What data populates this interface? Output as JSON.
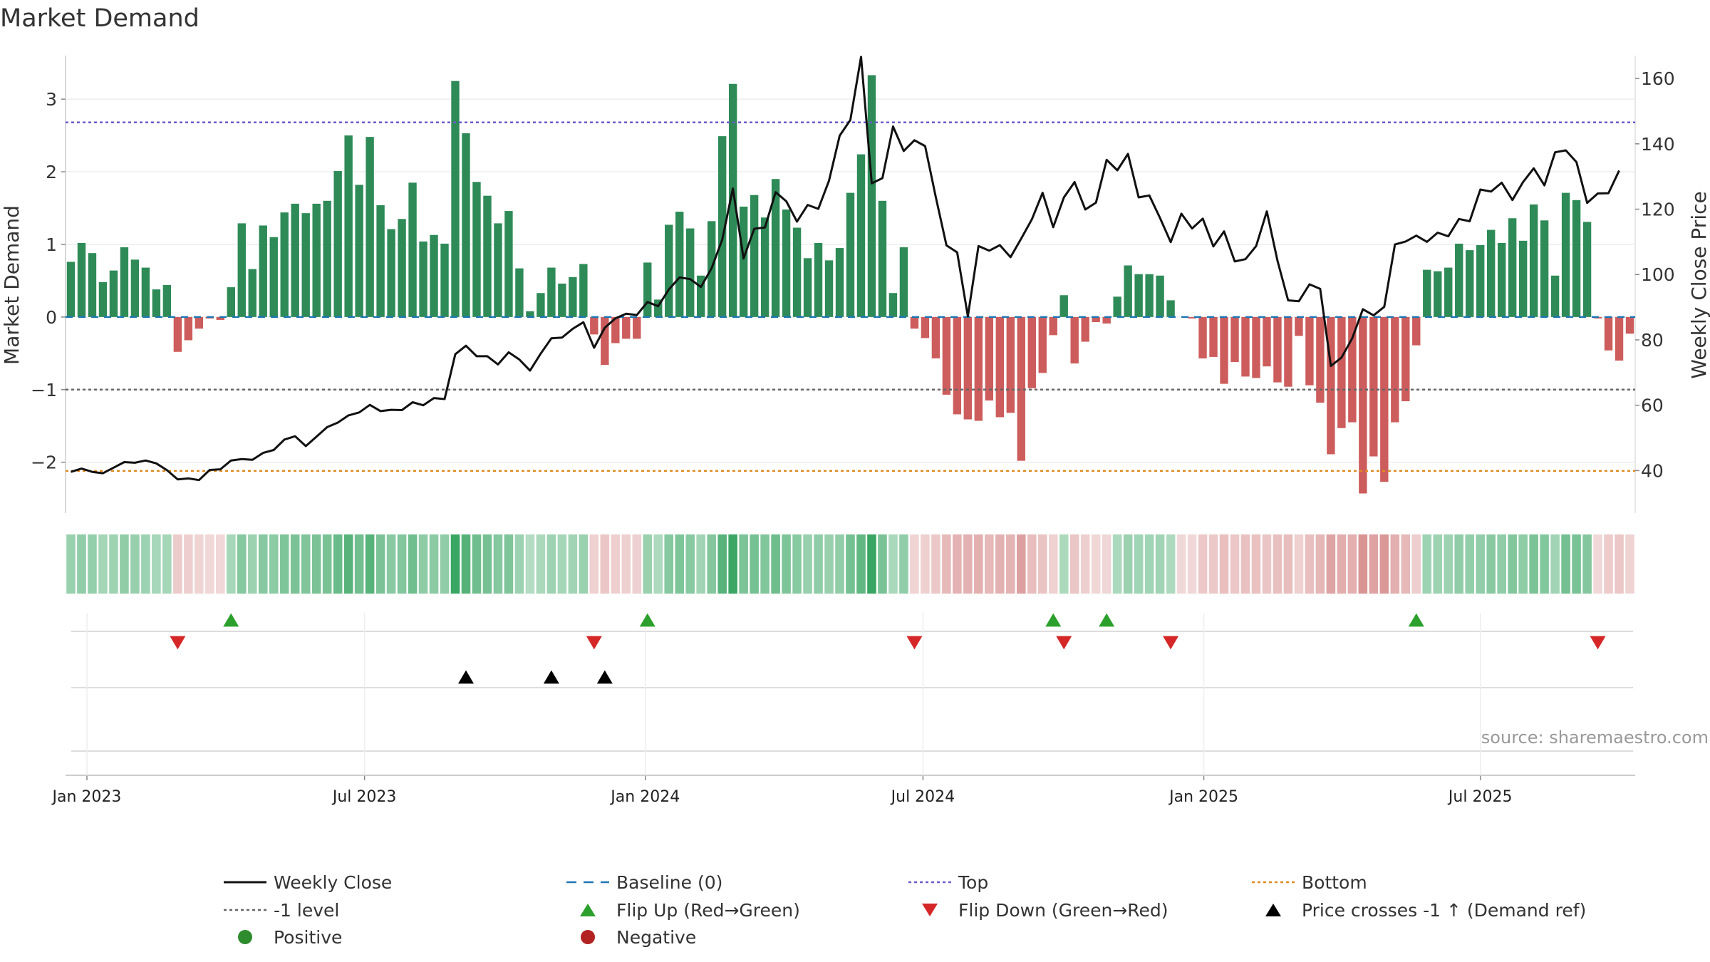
{
  "chart_data": {
    "type": "bar",
    "title": "Market Demand",
    "ylabel_left": "Market Demand",
    "ylabel_right": "Weekly Close Price",
    "source": "source: sharemaestro.com",
    "ylim_left": [
      -2.7,
      3.6
    ],
    "ylim_right": [
      27,
      167
    ],
    "left_ticks": [
      {
        "value": 3,
        "label": "3"
      },
      {
        "value": 2,
        "label": "2"
      },
      {
        "value": 1,
        "label": "1"
      },
      {
        "value": 0,
        "label": "0"
      },
      {
        "value": -1,
        "label": "−1"
      },
      {
        "value": -2,
        "label": "−2"
      }
    ],
    "right_ticks": [
      {
        "value": 160,
        "label": "160"
      },
      {
        "value": 140,
        "label": "140"
      },
      {
        "value": 120,
        "label": "120"
      },
      {
        "value": 100,
        "label": "100"
      },
      {
        "value": 80,
        "label": "80"
      },
      {
        "value": 60,
        "label": "60"
      },
      {
        "value": 40,
        "label": "40"
      }
    ],
    "x_ticks": [
      {
        "week": 1.5,
        "label": "Jan 2023"
      },
      {
        "week": 27.5,
        "label": "Jul 2023"
      },
      {
        "week": 53.8,
        "label": "Jan 2024"
      },
      {
        "week": 79.8,
        "label": "Jul 2024"
      },
      {
        "week": 106.1,
        "label": "Jan 2025"
      },
      {
        "week": 132,
        "label": "Jul 2025"
      }
    ],
    "reference_lines": {
      "top": 2.68,
      "minus_one": -1,
      "bottom": -2.12,
      "baseline": 0
    },
    "colors": {
      "positive": "#2e8b57",
      "negative": "#cd5c5c",
      "close": "#111111",
      "top": "#6a5acd",
      "bottom": "#e08a1e",
      "baseline": "#1f77b4",
      "level": "#666666",
      "flip_up": "#2ca02c",
      "flip_down": "#d62728"
    },
    "demand": [
      0.76,
      1.02,
      0.88,
      0.48,
      0.64,
      0.96,
      0.79,
      0.68,
      0.38,
      0.44,
      -0.48,
      -0.32,
      -0.16,
      -0.02,
      -0.04,
      0.41,
      1.29,
      0.66,
      1.26,
      1.1,
      1.44,
      1.56,
      1.43,
      1.56,
      1.6,
      2.01,
      2.5,
      1.82,
      2.48,
      1.54,
      1.21,
      1.35,
      1.85,
      1.04,
      1.13,
      1.01,
      3.25,
      2.53,
      1.86,
      1.67,
      1.29,
      1.46,
      0.67,
      0.08,
      0.33,
      0.68,
      0.46,
      0.55,
      0.73,
      -0.24,
      -0.66,
      -0.36,
      -0.3,
      -0.3,
      0.75,
      0.24,
      1.27,
      1.45,
      1.22,
      0.57,
      1.32,
      2.49,
      3.21,
      1.52,
      1.68,
      1.37,
      1.9,
      1.48,
      1.23,
      0.81,
      1.02,
      0.78,
      0.95,
      1.71,
      2.24,
      3.33,
      1.6,
      0.33,
      0.96,
      -0.16,
      -0.29,
      -0.57,
      -1.07,
      -1.34,
      -1.41,
      -1.43,
      -1.15,
      -1.38,
      -1.32,
      -1.98,
      -0.98,
      -0.77,
      -0.25,
      0.3,
      -0.64,
      -0.34,
      -0.07,
      -0.09,
      0.28,
      0.71,
      0.59,
      0.59,
      0.57,
      0.23,
      0.0,
      -0.02,
      -0.57,
      -0.55,
      -0.92,
      -0.62,
      -0.82,
      -0.84,
      -0.68,
      -0.9,
      -0.96,
      -0.26,
      -0.94,
      -1.18,
      -1.89,
      -1.53,
      -1.45,
      -2.43,
      -1.92,
      -2.27,
      -1.45,
      -1.16,
      -0.39,
      0.65,
      0.63,
      0.68,
      1.01,
      0.92,
      0.99,
      1.2,
      1.02,
      1.36,
      1.05,
      1.55,
      1.33,
      0.57,
      1.71,
      1.61,
      1.31,
      -0.02,
      -0.46,
      -0.6,
      -0.23
    ],
    "close": [
      39.6,
      40.6,
      39.6,
      39.2,
      40.9,
      42.6,
      42.4,
      43.1,
      42.2,
      40.1,
      37.3,
      37.6,
      37.1,
      40.2,
      40.4,
      43.1,
      43.5,
      43.3,
      45.4,
      46.3,
      49.5,
      50.5,
      47.5,
      50.4,
      53.3,
      54.7,
      56.9,
      57.8,
      60.1,
      58.2,
      58.6,
      58.5,
      60.9,
      60.0,
      62.2,
      61.9,
      75.6,
      78.2,
      75.0,
      75.0,
      72.5,
      76.2,
      74.0,
      70.6,
      75.8,
      80.5,
      80.7,
      83.4,
      85.4,
      77.6,
      83.7,
      86.6,
      88.0,
      87.6,
      91.6,
      90.3,
      95.4,
      99.1,
      98.6,
      96.2,
      101.9,
      110.7,
      126.3,
      104.9,
      114.0,
      114.4,
      125.2,
      122.4,
      116.2,
      121.3,
      120.1,
      128.7,
      142.5,
      147.3,
      166.6,
      127.9,
      129.5,
      145.3,
      137.8,
      141.1,
      139.3,
      123.7,
      108.9,
      106.8,
      87.2,
      108.7,
      107.3,
      109.0,
      105.3,
      111.0,
      116.9,
      125.0,
      114.5,
      123.6,
      128.3,
      119.9,
      122.0,
      135.1,
      131.9,
      136.9,
      123.6,
      124.2,
      117.3,
      109.9,
      118.6,
      114.1,
      117.1,
      108.6,
      113.2,
      104.0,
      104.7,
      108.7,
      119.3,
      104.2,
      92.1,
      91.8,
      97.0,
      95.6,
      72.0,
      74.6,
      80.5,
      89.4,
      87.5,
      90.1,
      109.2,
      110.1,
      111.9,
      110.0,
      112.8,
      111.7,
      117.0,
      116.3,
      126.0,
      125.4,
      128.1,
      122.8,
      128.3,
      132.5,
      127.3,
      137.4,
      138.0,
      134.4,
      121.9,
      124.8,
      124.9,
      131.8
    ],
    "flip_up_weeks": [
      15,
      54,
      92,
      97,
      126
    ],
    "flip_down_weeks": [
      10,
      49,
      79,
      93,
      103,
      143
    ],
    "price_cross_weeks": [
      37,
      45,
      50
    ],
    "legend": [
      {
        "label": "Weekly Close",
        "symbol": "line-solid",
        "color": "#111111"
      },
      {
        "label": "Baseline (0)",
        "symbol": "line-dashed",
        "color": "#1f77b4"
      },
      {
        "label": "Top",
        "symbol": "line-dotted",
        "color": "#6a5acd"
      },
      {
        "label": "Bottom",
        "symbol": "line-dotted",
        "color": "#e08a1e"
      },
      {
        "label": "-1 level",
        "symbol": "line-dotted",
        "color": "#666666"
      },
      {
        "label": "Flip Up (Red→Green)",
        "symbol": "triangle-up",
        "color": "#2ca02c"
      },
      {
        "label": "Flip Down (Green→Red)",
        "symbol": "triangle-down",
        "color": "#d62728"
      },
      {
        "label": "Price crosses -1 ↑ (Demand ref)",
        "symbol": "triangle-up",
        "color": "#000000"
      },
      {
        "label": "Positive",
        "symbol": "circle",
        "color": "#2e8b2e"
      },
      {
        "label": "Negative",
        "symbol": "circle",
        "color": "#b22222"
      }
    ]
  }
}
